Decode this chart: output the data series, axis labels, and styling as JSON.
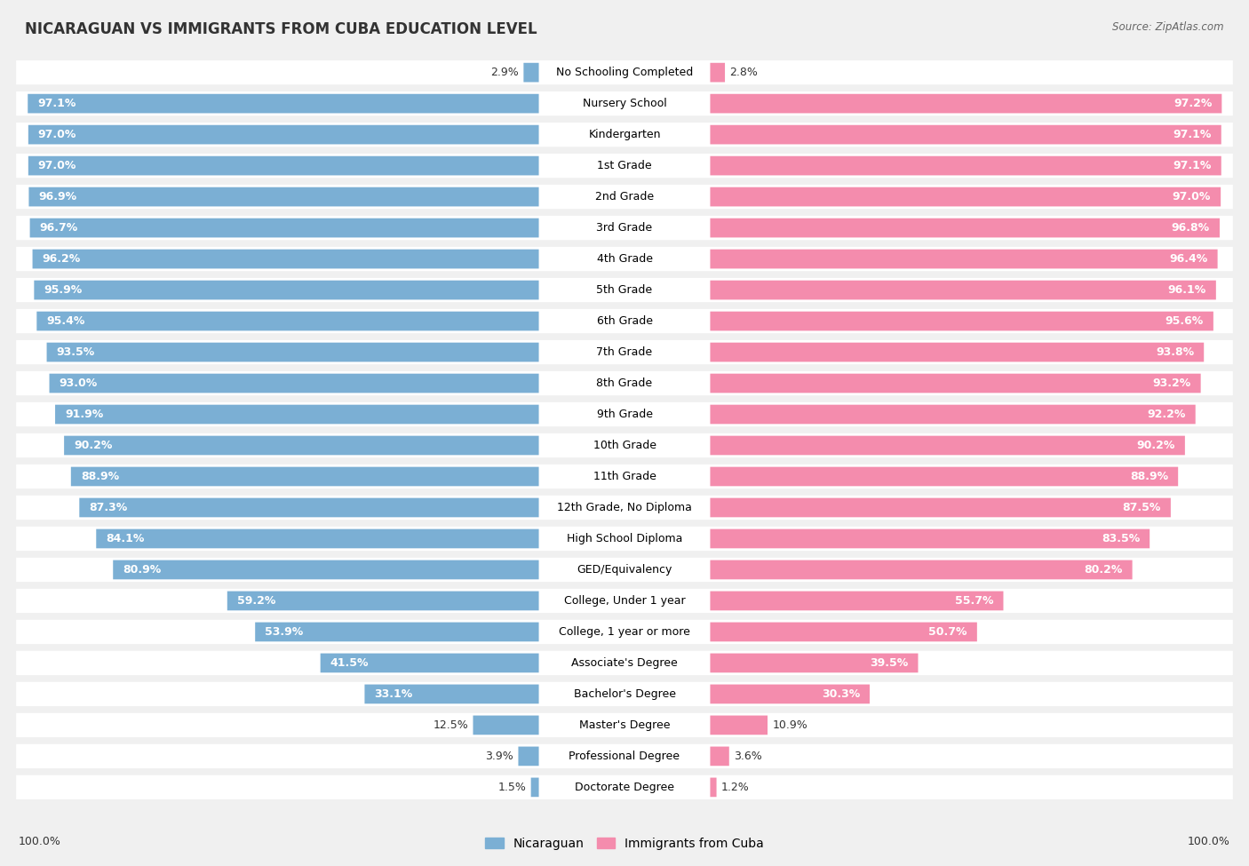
{
  "title": "NICARAGUAN VS IMMIGRANTS FROM CUBA EDUCATION LEVEL",
  "source": "Source: ZipAtlas.com",
  "categories": [
    "No Schooling Completed",
    "Nursery School",
    "Kindergarten",
    "1st Grade",
    "2nd Grade",
    "3rd Grade",
    "4th Grade",
    "5th Grade",
    "6th Grade",
    "7th Grade",
    "8th Grade",
    "9th Grade",
    "10th Grade",
    "11th Grade",
    "12th Grade, No Diploma",
    "High School Diploma",
    "GED/Equivalency",
    "College, Under 1 year",
    "College, 1 year or more",
    "Associate's Degree",
    "Bachelor's Degree",
    "Master's Degree",
    "Professional Degree",
    "Doctorate Degree"
  ],
  "nicaraguan": [
    2.9,
    97.1,
    97.0,
    97.0,
    96.9,
    96.7,
    96.2,
    95.9,
    95.4,
    93.5,
    93.0,
    91.9,
    90.2,
    88.9,
    87.3,
    84.1,
    80.9,
    59.2,
    53.9,
    41.5,
    33.1,
    12.5,
    3.9,
    1.5
  ],
  "cuba": [
    2.8,
    97.2,
    97.1,
    97.1,
    97.0,
    96.8,
    96.4,
    96.1,
    95.6,
    93.8,
    93.2,
    92.2,
    90.2,
    88.9,
    87.5,
    83.5,
    80.2,
    55.7,
    50.7,
    39.5,
    30.3,
    10.9,
    3.6,
    1.2
  ],
  "blue_color": "#7bafd4",
  "pink_color": "#f48cad",
  "bg_color": "#f0f0f0",
  "bar_bg_color": "#ffffff",
  "label_fontsize": 9.0,
  "title_fontsize": 12,
  "bar_height": 0.62,
  "total_width": 100.0,
  "label_area": 14.0,
  "value_threshold": 20.0
}
